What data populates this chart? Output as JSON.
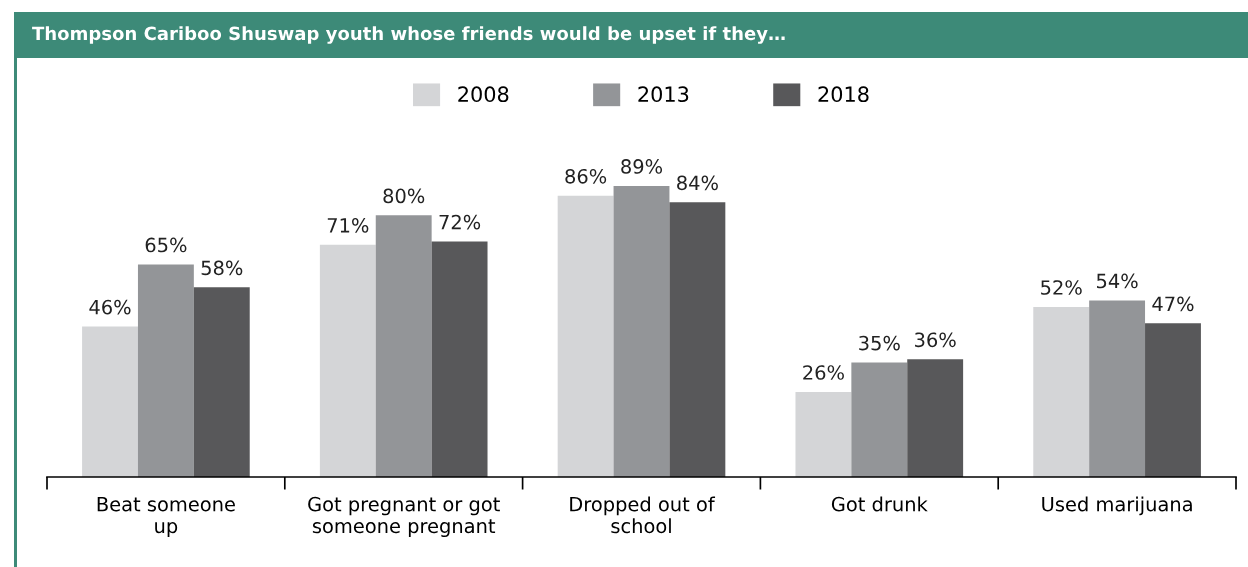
{
  "chart_data": {
    "type": "bar",
    "title": "Thompson Cariboo Shuswap youth whose friends would be upset if they…",
    "categories": [
      "Beat someone\nup",
      "Got pregnant or got\nsomeone pregnant",
      "Dropped out of\nschool",
      "Got drunk",
      "Used marijuana"
    ],
    "series": [
      {
        "name": "2008",
        "color": "#d4d5d7",
        "values": [
          46,
          71,
          86,
          26,
          52
        ],
        "value_labels": [
          "46%",
          "71%",
          "86%",
          "26%",
          "52%"
        ]
      },
      {
        "name": "2013",
        "color": "#939598",
        "values": [
          65,
          80,
          89,
          35,
          54
        ],
        "value_labels": [
          "65%",
          "80%",
          "89%",
          "35%",
          "54%"
        ]
      },
      {
        "name": "2018",
        "color": "#58585a",
        "values": [
          58,
          72,
          84,
          36,
          47
        ],
        "value_labels": [
          "58%",
          "72%",
          "84%",
          "36%",
          "47%"
        ]
      }
    ],
    "tick_labels": "x",
    "legend": "top",
    "grid": false
  }
}
